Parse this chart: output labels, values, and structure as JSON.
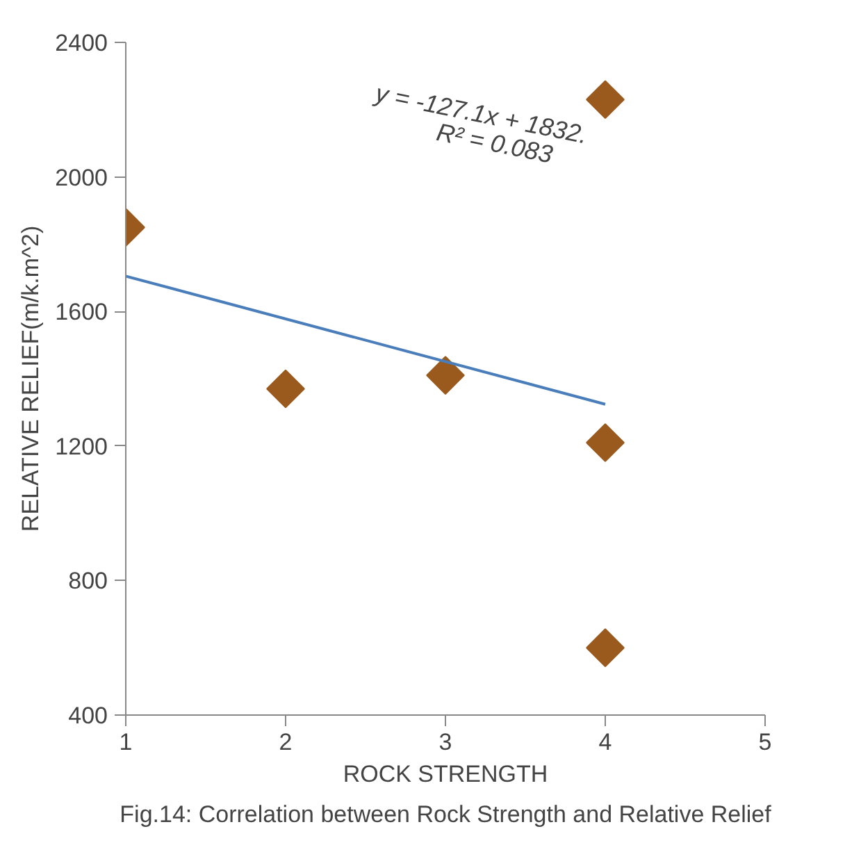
{
  "chart_data": {
    "type": "scatter",
    "xlabel": "ROCK STRENGTH",
    "ylabel": "RELATIVE RELIEF(m/k.m^2)",
    "xlim": [
      1,
      5
    ],
    "xticks": [
      1,
      2,
      3,
      4,
      5
    ],
    "ylim": [
      400,
      2400
    ],
    "yticks": [
      400,
      800,
      1200,
      1600,
      2000,
      2400
    ],
    "grid": false,
    "marker": "diamond",
    "x": [
      1,
      2,
      3,
      4,
      4,
      4
    ],
    "series": [
      {
        "color": "#9a5a1e",
        "values": [
          1850,
          1370,
          1410,
          2230,
          1210,
          600
        ]
      },
      {
        "type": "line",
        "color": "#4a7ebb",
        "x": [
          1,
          4
        ],
        "values": [
          1705,
          1324
        ],
        "marker": "none"
      }
    ],
    "annotations": [
      "y = -127.1x + 1832.",
      "R² = 0.083",
      "Fig.14: Correlation between Rock Strength and Relative Relief"
    ]
  }
}
